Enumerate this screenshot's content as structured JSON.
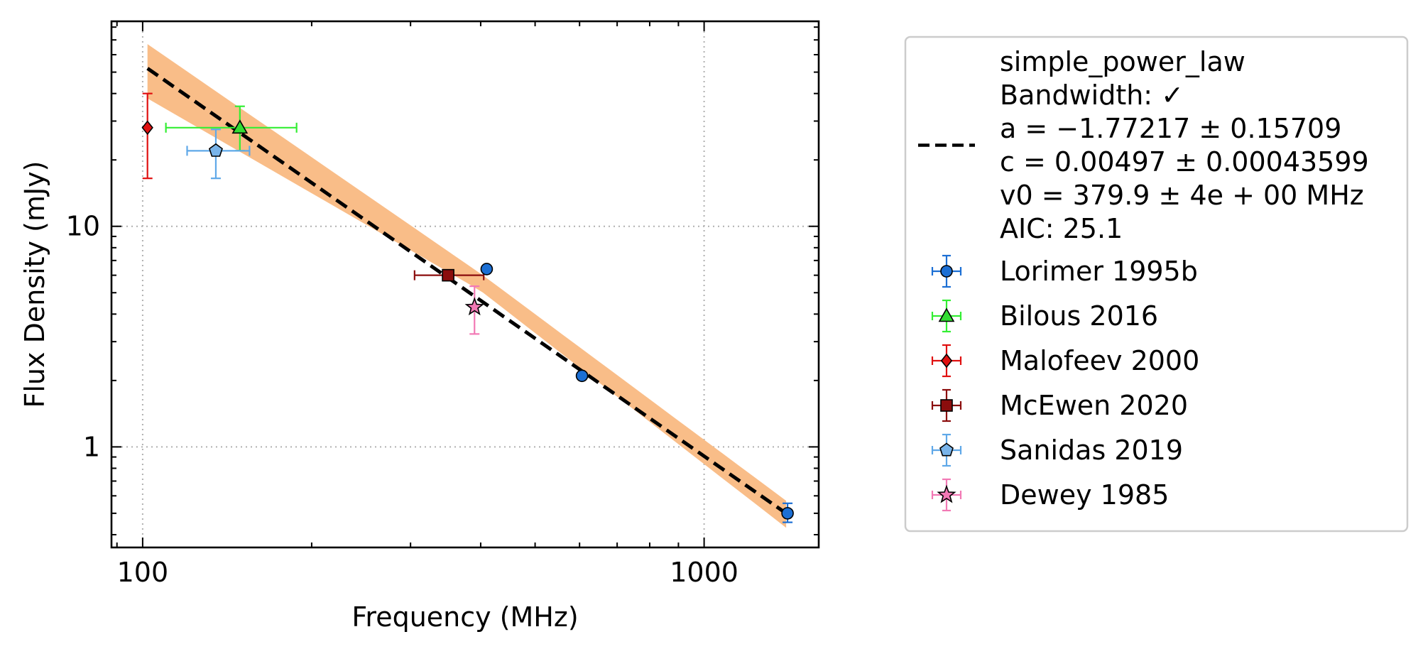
{
  "chart_data": {
    "type": "scatter",
    "xscale": "log",
    "yscale": "log",
    "xlabel": "Frequency (MHz)",
    "ylabel": "Flux Density (mJy)",
    "xlim": [
      88,
      1600
    ],
    "ylim": [
      0.35,
      85
    ],
    "xticks": [
      {
        "value": 100,
        "label": "100"
      },
      {
        "value": 1000,
        "label": "1000"
      }
    ],
    "yticks": [
      {
        "value": 1,
        "label": "1"
      },
      {
        "value": 10,
        "label": "10"
      }
    ],
    "grid": true,
    "legend_position": "outside-right",
    "fit": {
      "name_lines": [
        "simple_power_law",
        "Bandwidth: ✓",
        "a = −1.77217 ± 0.15709",
        "c = 0.00497 ± 0.00043599",
        "v0 = 379.9 ± 4e + 00 MHz",
        "AIC: 25.1"
      ],
      "x_range": [
        102,
        1400
      ],
      "line_points": [
        [
          102,
          52
        ],
        [
          1400,
          0.5
        ]
      ],
      "band_upper": [
        [
          102,
          67
        ],
        [
          400,
          6.1
        ],
        [
          1400,
          0.57
        ]
      ],
      "band_lower": [
        [
          102,
          38
        ],
        [
          400,
          5.1
        ],
        [
          1400,
          0.43
        ]
      ],
      "line_color": "#000000",
      "band_color": "#f9bd88"
    },
    "series": [
      {
        "name": "Lorimer 1995b",
        "marker": "circle",
        "color": "#1c6fd4",
        "ecolor": "#1c6fd4",
        "points": [
          {
            "x": 410,
            "y": 6.4,
            "yerr": [
              0,
              0
            ],
            "xerr": [
              0,
              0
            ]
          },
          {
            "x": 606,
            "y": 2.1,
            "yerr": [
              0,
              0
            ],
            "xerr": [
              0,
              0
            ]
          },
          {
            "x": 1408,
            "y": 0.5,
            "yerr": [
              0.045,
              0.055
            ],
            "xerr": [
              0,
              0
            ]
          }
        ]
      },
      {
        "name": "Bilous 2016",
        "marker": "triangle",
        "color": "#33dd33",
        "ecolor": "#33ee33",
        "points": [
          {
            "x": 149,
            "y": 28,
            "yerr": [
              6,
              7
            ],
            "xerr": [
              39,
              39
            ]
          }
        ]
      },
      {
        "name": "Malofeev 2000",
        "marker": "diamond",
        "color": "#e01010",
        "ecolor": "#e01010",
        "points": [
          {
            "x": 102,
            "y": 28,
            "yerr": [
              11.5,
              12
            ],
            "xerr": [
              0,
              0
            ]
          }
        ]
      },
      {
        "name": "McEwen 2020",
        "marker": "square",
        "color": "#8b0d0d",
        "ecolor": "#8b0d0d",
        "points": [
          {
            "x": 350,
            "y": 6.0,
            "yerr": [
              0,
              0
            ],
            "xerr": [
              45,
              55
            ]
          }
        ]
      },
      {
        "name": "Sanidas 2019",
        "marker": "pentagon",
        "color": "#79b4ea",
        "ecolor": "#5fa8e8",
        "points": [
          {
            "x": 135,
            "y": 22,
            "yerr": [
              5.5,
              5.5
            ],
            "xerr": [
              15,
              20
            ]
          }
        ]
      },
      {
        "name": "Dewey 1985",
        "marker": "star",
        "color": "#f279b5",
        "ecolor": "#f279b5",
        "points": [
          {
            "x": 390,
            "y": 4.3,
            "yerr": [
              1.05,
              1.05
            ],
            "xerr": [
              0,
              0
            ]
          }
        ]
      }
    ]
  }
}
